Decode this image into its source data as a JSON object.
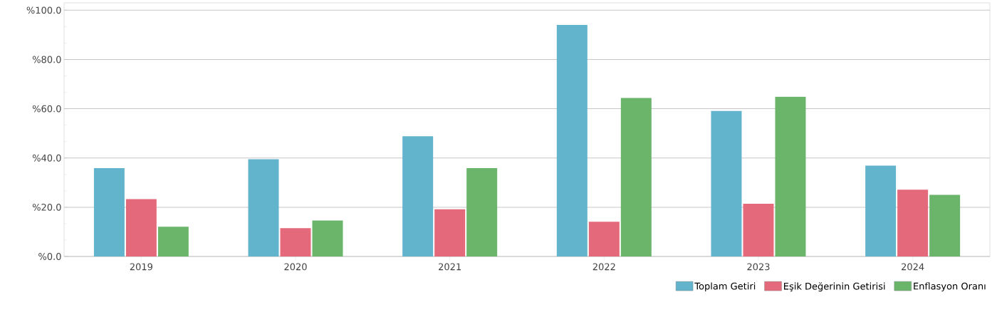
{
  "chart_data": {
    "type": "bar",
    "categories": [
      "2019",
      "2020",
      "2021",
      "2022",
      "2023",
      "2024"
    ],
    "series": [
      {
        "name": "Toplam Getiri",
        "color": "#62b3cc",
        "values": [
          35.9,
          39.5,
          48.8,
          94.0,
          59.1,
          36.9
        ]
      },
      {
        "name": "Eşik Değerinin Getirisi",
        "color": "#e46a7b",
        "values": [
          23.3,
          11.5,
          19.2,
          14.1,
          21.4,
          27.1
        ]
      },
      {
        "name": "Enflasyon Oranı",
        "color": "#6bb56b",
        "values": [
          12.1,
          14.6,
          35.9,
          64.4,
          64.9,
          25.0
        ]
      }
    ],
    "ylim": [
      0,
      103
    ],
    "yticks": [
      {
        "value": 0,
        "label": "%0.0"
      },
      {
        "value": 20,
        "label": "%20.0"
      },
      {
        "value": 40,
        "label": "%40.0"
      },
      {
        "value": 60,
        "label": "%60.0"
      },
      {
        "value": 80,
        "label": "%80.0"
      },
      {
        "value": 100,
        "label": "%100.0"
      }
    ],
    "grid": "y",
    "legend": "bottom right"
  }
}
